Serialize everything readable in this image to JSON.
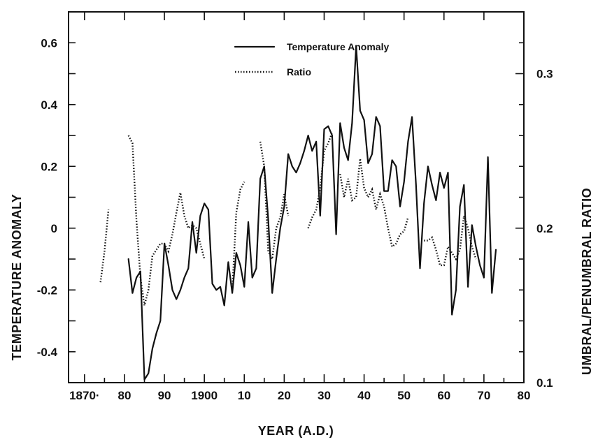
{
  "chart_data": {
    "type": "line",
    "title": "",
    "xlabel": "YEAR (A.D.)",
    "ylabel_left": "TEMPERATURE ANOMALY",
    "ylabel_right": "UMBRAL/PENUMBRAL RATIO",
    "xlim": [
      1866,
      1980
    ],
    "ylim_left": [
      -0.5,
      0.7
    ],
    "ylim_right": [
      0.1,
      0.34
    ],
    "x_tick_labels": [
      {
        "x": 1870,
        "label": "1870·"
      },
      {
        "x": 1880,
        "label": "80"
      },
      {
        "x": 1890,
        "label": "90"
      },
      {
        "x": 1900,
        "label": "1900"
      },
      {
        "x": 1910,
        "label": "10"
      },
      {
        "x": 1920,
        "label": "20"
      },
      {
        "x": 1930,
        "label": "30"
      },
      {
        "x": 1940,
        "label": "40"
      },
      {
        "x": 1950,
        "label": "50"
      },
      {
        "x": 1960,
        "label": "60"
      },
      {
        "x": 1970,
        "label": "70"
      },
      {
        "x": 1980,
        "label": "80"
      }
    ],
    "y_left_tick_labels": [
      {
        "y": -0.4,
        "label": "-0.4"
      },
      {
        "y": -0.2,
        "label": "-0.2"
      },
      {
        "y": 0,
        "label": "0"
      },
      {
        "y": 0.2,
        "label": "0.2"
      },
      {
        "y": 0.4,
        "label": "0.4"
      },
      {
        "y": 0.6,
        "label": "0.6"
      }
    ],
    "y_right_tick_labels": [
      {
        "y": 0.1,
        "label": "0.1"
      },
      {
        "y": 0.2,
        "label": "0.2"
      },
      {
        "y": 0.3,
        "label": "0.3"
      }
    ],
    "legend": {
      "placement": "top-center",
      "entries": [
        {
          "label": "Temperature Anomaly",
          "style": "solid"
        },
        {
          "label": "Ratio",
          "style": "dotted"
        }
      ]
    },
    "grid": false,
    "series": [
      {
        "name": "Temperature Anomaly",
        "axis": "left",
        "style": "solid",
        "segments": [
          [
            [
              1881,
              -0.1
            ],
            [
              1882,
              -0.21
            ],
            [
              1883,
              -0.16
            ],
            [
              1884,
              -0.14
            ],
            [
              1885,
              -0.49
            ],
            [
              1886,
              -0.47
            ],
            [
              1887,
              -0.39
            ],
            [
              1888,
              -0.34
            ],
            [
              1889,
              -0.3
            ],
            [
              1890,
              -0.05
            ],
            [
              1891,
              -0.12
            ],
            [
              1892,
              -0.2
            ],
            [
              1893,
              -0.23
            ],
            [
              1894,
              -0.2
            ],
            [
              1895,
              -0.16
            ],
            [
              1896,
              -0.13
            ],
            [
              1897,
              0.02
            ],
            [
              1898,
              -0.08
            ],
            [
              1899,
              0.04
            ],
            [
              1900,
              0.08
            ],
            [
              1901,
              0.06
            ],
            [
              1902,
              -0.18
            ],
            [
              1903,
              -0.2
            ],
            [
              1904,
              -0.19
            ],
            [
              1905,
              -0.25
            ],
            [
              1906,
              -0.11
            ],
            [
              1907,
              -0.21
            ],
            [
              1908,
              -0.08
            ],
            [
              1909,
              -0.12
            ],
            [
              1910,
              -0.19
            ],
            [
              1911,
              0.02
            ],
            [
              1912,
              -0.16
            ],
            [
              1913,
              -0.13
            ],
            [
              1914,
              0.16
            ],
            [
              1915,
              0.2
            ],
            [
              1916,
              0.03
            ],
            [
              1917,
              -0.21
            ],
            [
              1918,
              -0.1
            ],
            [
              1919,
              0.0
            ],
            [
              1920,
              0.07
            ],
            [
              1921,
              0.24
            ],
            [
              1922,
              0.2
            ],
            [
              1923,
              0.18
            ],
            [
              1924,
              0.21
            ],
            [
              1925,
              0.25
            ],
            [
              1926,
              0.3
            ],
            [
              1927,
              0.25
            ],
            [
              1928,
              0.28
            ],
            [
              1929,
              0.04
            ],
            [
              1930,
              0.32
            ],
            [
              1931,
              0.33
            ],
            [
              1932,
              0.3
            ],
            [
              1933,
              -0.02
            ],
            [
              1934,
              0.34
            ],
            [
              1935,
              0.26
            ],
            [
              1936,
              0.22
            ],
            [
              1937,
              0.34
            ],
            [
              1938,
              0.59
            ],
            [
              1939,
              0.38
            ],
            [
              1940,
              0.35
            ],
            [
              1941,
              0.21
            ],
            [
              1942,
              0.24
            ],
            [
              1943,
              0.36
            ],
            [
              1944,
              0.33
            ],
            [
              1945,
              0.12
            ],
            [
              1946,
              0.12
            ],
            [
              1947,
              0.22
            ],
            [
              1948,
              0.2
            ],
            [
              1949,
              0.07
            ],
            [
              1950,
              0.15
            ],
            [
              1951,
              0.28
            ],
            [
              1952,
              0.36
            ],
            [
              1953,
              0.14
            ],
            [
              1954,
              -0.13
            ],
            [
              1955,
              0.08
            ],
            [
              1956,
              0.2
            ],
            [
              1957,
              0.14
            ],
            [
              1958,
              0.09
            ],
            [
              1959,
              0.18
            ],
            [
              1960,
              0.13
            ],
            [
              1961,
              0.18
            ],
            [
              1962,
              -0.28
            ],
            [
              1963,
              -0.2
            ],
            [
              1964,
              0.07
            ],
            [
              1965,
              0.14
            ],
            [
              1966,
              -0.19
            ],
            [
              1967,
              0.01
            ],
            [
              1968,
              -0.06
            ],
            [
              1969,
              -0.12
            ],
            [
              1970,
              -0.16
            ],
            [
              1971,
              0.23
            ],
            [
              1972,
              -0.21
            ],
            [
              1973,
              -0.07
            ]
          ]
        ]
      },
      {
        "name": "Ratio",
        "axis": "right",
        "style": "dotted",
        "segments": [
          [
            [
              1874,
              0.165
            ],
            [
              1875,
              0.185
            ],
            [
              1876,
              0.212
            ]
          ],
          [
            [
              1881,
              0.26
            ],
            [
              1882,
              0.255
            ],
            [
              1883,
              0.205
            ],
            [
              1884,
              0.168
            ],
            [
              1885,
              0.15
            ],
            [
              1886,
              0.16
            ],
            [
              1887,
              0.182
            ],
            [
              1888,
              0.186
            ],
            [
              1889,
              0.19
            ],
            [
              1890,
              0.19
            ],
            [
              1891,
              0.185
            ],
            [
              1892,
              0.196
            ],
            [
              1893,
              0.21
            ],
            [
              1894,
              0.223
            ],
            [
              1895,
              0.208
            ],
            [
              1896,
              0.2
            ],
            [
              1897,
              0.202
            ],
            [
              1898,
              0.2
            ],
            [
              1899,
              0.19
            ],
            [
              1900,
              0.18
            ]
          ],
          [
            [
              1907,
              0.16
            ],
            [
              1908,
              0.21
            ],
            [
              1909,
              0.225
            ],
            [
              1910,
              0.23
            ]
          ],
          [
            [
              1914,
              0.256
            ],
            [
              1915,
              0.24
            ],
            [
              1916,
              0.185
            ],
            [
              1917,
              0.18
            ],
            [
              1918,
              0.2
            ],
            [
              1919,
              0.207
            ],
            [
              1920,
              0.222
            ],
            [
              1921,
              0.208
            ]
          ],
          [
            [
              1926,
              0.2
            ],
            [
              1927,
              0.207
            ],
            [
              1928,
              0.212
            ],
            [
              1929,
              0.226
            ],
            [
              1930,
              0.25
            ],
            [
              1931,
              0.255
            ],
            [
              1932,
              0.262
            ]
          ],
          [
            [
              1934,
              0.235
            ],
            [
              1935,
              0.22
            ],
            [
              1936,
              0.232
            ],
            [
              1937,
              0.218
            ],
            [
              1938,
              0.22
            ],
            [
              1939,
              0.245
            ],
            [
              1940,
              0.226
            ],
            [
              1941,
              0.22
            ],
            [
              1942,
              0.225
            ],
            [
              1943,
              0.212
            ],
            [
              1944,
              0.222
            ],
            [
              1945,
              0.214
            ],
            [
              1946,
              0.2
            ],
            [
              1947,
              0.188
            ],
            [
              1948,
              0.19
            ],
            [
              1949,
              0.196
            ],
            [
              1950,
              0.198
            ],
            [
              1951,
              0.207
            ]
          ],
          [
            [
              1955,
              0.192
            ],
            [
              1956,
              0.192
            ],
            [
              1957,
              0.194
            ],
            [
              1958,
              0.186
            ],
            [
              1959,
              0.176
            ],
            [
              1960,
              0.176
            ],
            [
              1961,
              0.188
            ],
            [
              1962,
              0.184
            ],
            [
              1963,
              0.18
            ],
            [
              1964,
              0.186
            ],
            [
              1965,
              0.208
            ],
            [
              1966,
              0.2
            ],
            [
              1967,
              0.188
            ],
            [
              1968,
              0.18
            ]
          ]
        ]
      }
    ]
  }
}
